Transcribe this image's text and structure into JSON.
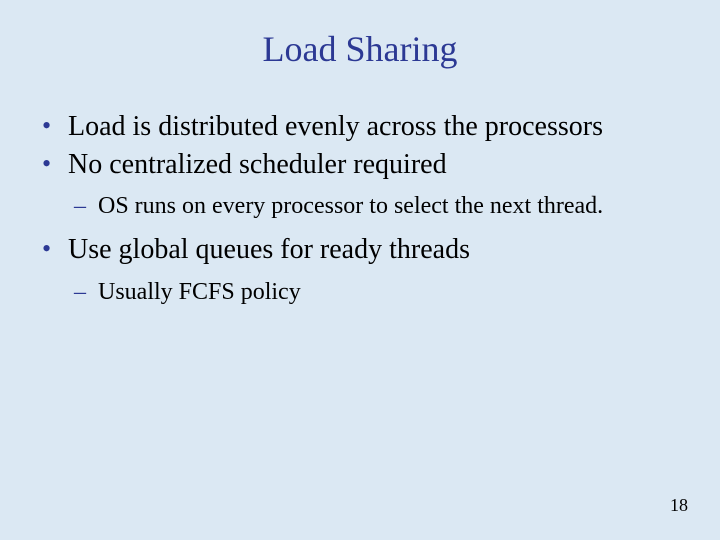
{
  "slide": {
    "background_color": "#dbe8f3",
    "accent_color": "#2c3994",
    "text_color": "#000000",
    "title_fontsize": 36,
    "body_fontsize_l1": 28,
    "body_fontsize_l2": 24,
    "font_family": "Times New Roman",
    "title": "Load Sharing",
    "bullets": [
      {
        "text": "Load is distributed evenly across the processors"
      },
      {
        "text": "No centralized scheduler required",
        "sub": [
          "OS runs on every processor to select the next thread."
        ]
      },
      {
        "text": "Use global queues for ready threads",
        "sub": [
          "Usually FCFS policy"
        ]
      }
    ],
    "page_number": "18"
  }
}
